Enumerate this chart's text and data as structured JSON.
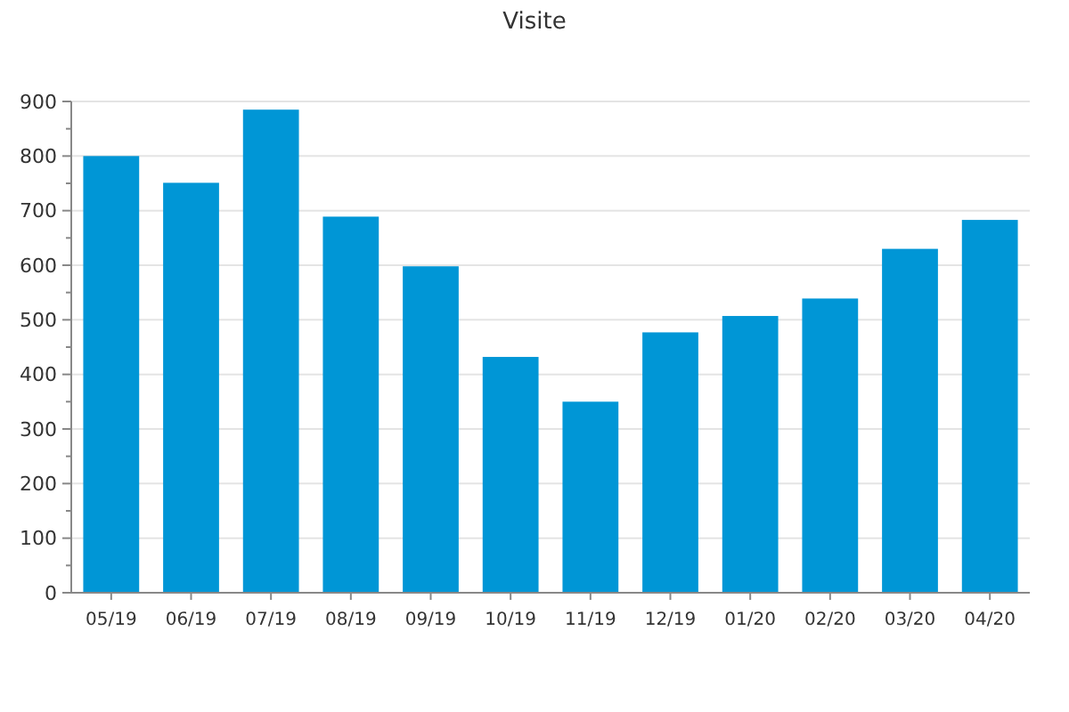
{
  "chart_data": {
    "type": "bar",
    "title": "Visite",
    "categories": [
      "05/19",
      "06/19",
      "07/19",
      "08/19",
      "09/19",
      "10/19",
      "11/19",
      "12/19",
      "01/20",
      "02/20",
      "03/20",
      "04/20"
    ],
    "values": [
      800,
      751,
      885,
      689,
      598,
      432,
      350,
      477,
      507,
      539,
      630,
      683
    ],
    "color": "#0096d6",
    "ylim": [
      0,
      900
    ],
    "yticks": [
      0,
      {
        "value": 50,
        "label": null
      },
      100,
      {
        "value": 150,
        "label": null
      },
      200,
      {
        "value": 250,
        "label": null
      },
      300,
      {
        "value": 350,
        "label": null
      },
      400,
      {
        "value": 450,
        "label": null
      },
      500,
      {
        "value": 550,
        "label": null
      },
      600,
      {
        "value": 650,
        "label": null
      },
      700,
      {
        "value": 750,
        "label": null
      },
      800,
      {
        "value": 850,
        "label": null
      },
      900
    ],
    "grid": "y"
  }
}
